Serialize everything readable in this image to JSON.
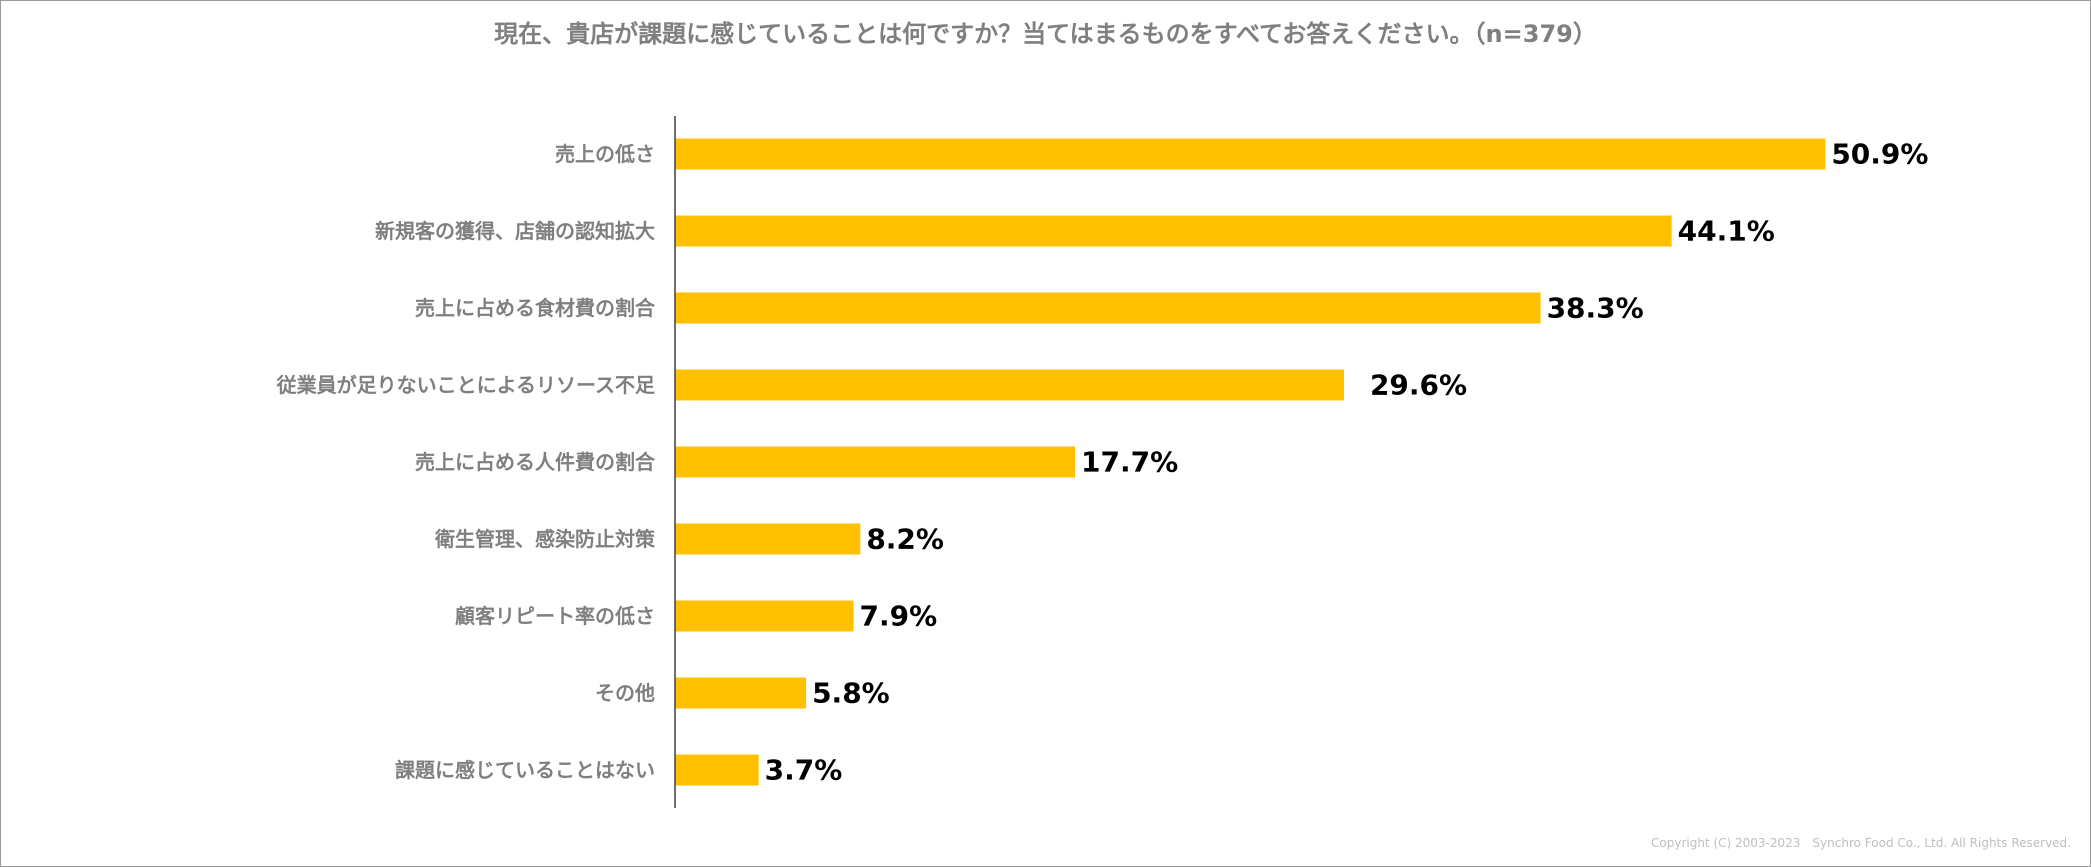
{
  "chart_data": {
    "type": "bar",
    "orientation": "horizontal",
    "title": "現在、貴店が課題に感じていることは何ですか？当てはまるものをすべてお答えください。（n=379）",
    "categories": [
      "売上の低さ",
      "新規客の獲得、店舗の認知拡大",
      "売上に占める食材費の割合",
      "従業員が足りないことによるリソース不足",
      "売上に占める人件費の割合",
      "衛生管理、感染防止対策",
      "顧客リピート率の低さ",
      "その他",
      "課題に感じていることはない"
    ],
    "values": [
      50.9,
      44.1,
      38.3,
      29.6,
      17.7,
      8.2,
      7.9,
      5.8,
      3.7
    ],
    "value_labels": [
      "50.9%",
      "44.1%",
      "38.3%",
      "29.6%",
      "17.7%",
      "8.2%",
      "7.9%",
      "5.8%",
      "3.7%"
    ],
    "xlim": [
      0,
      60
    ],
    "unit": "%",
    "grid": false,
    "legend": "none",
    "bar_color": "#FFC000"
  },
  "footer": {
    "copyright": "Copyright (C) 2003-2023　Synchro Food Co., Ltd. All Rights Reserved."
  }
}
